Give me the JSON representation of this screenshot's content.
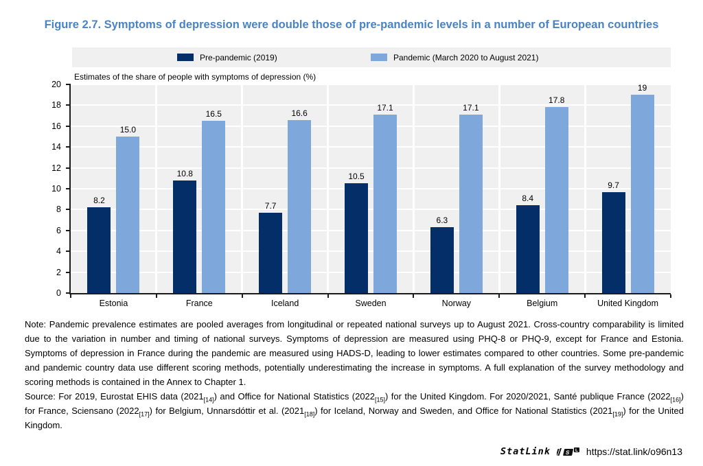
{
  "figure": {
    "title_color": "#4a83c4"
  },
  "chart_data": {
    "type": "bar",
    "title": "Figure 2.7. Symptoms of depression were double those of pre-pandemic levels in a number of European countries",
    "subtitle": "Estimates of the share of people with symptoms of depression (%)",
    "categories": [
      "Estonia",
      "France",
      "Iceland",
      "Sweden",
      "Norway",
      "Belgium",
      "United Kingdom"
    ],
    "series": [
      {
        "name": "Pre-pandemic (2019)",
        "color": "#032e68",
        "values": [
          8.2,
          10.8,
          7.7,
          10.5,
          6.3,
          8.4,
          9.7
        ],
        "labels": [
          "8.2",
          "10.8",
          "7.7",
          "10.5",
          "6.3",
          "8.4",
          "9.7"
        ]
      },
      {
        "name": "Pandemic (March 2020 to August 2021)",
        "color": "#7ea7db",
        "values": [
          15.0,
          16.5,
          16.6,
          17.1,
          17.1,
          17.8,
          19
        ],
        "labels": [
          "15.0",
          "16.5",
          "16.6",
          "17.1",
          "17.1",
          "17.8",
          "19"
        ]
      }
    ],
    "ylim": [
      0,
      20
    ],
    "ytick_step": 2,
    "grid": true,
    "legend_position": "top",
    "plot_bg": "#f0f0f0",
    "gridline_color": "#ffffff",
    "axis_color": "#1a1a1a"
  },
  "note": {
    "text": "Note: Pandemic prevalence estimates are pooled averages from longitudinal or repeated national surveys up to August 2021. Cross-country comparability is limited due to the variation in number and timing of national surveys. Symptoms of depression are measured using PHQ-8 or PHQ-9, except for France and Estonia. Symptoms of depression in France during the pandemic are measured using HADS-D, leading to lower estimates compared to other countries. Some pre-pandemic and pandemic country data use different scoring methods, potentially underestimating the increase in symptoms. A full explanation of the survey methodology and scoring methods is contained in the Annex to Chapter 1."
  },
  "source": {
    "segments": [
      {
        "t": "Source: For 2019, Eurostat EHIS data (2021"
      },
      {
        "t": "[14]",
        "sub": true
      },
      {
        "t": ") and Office for National Statistics (2022"
      },
      {
        "t": "[15]",
        "sub": true
      },
      {
        "t": ") for the United Kingdom. For 2020/2021, Santé publique France (2022"
      },
      {
        "t": "[16]",
        "sub": true
      },
      {
        "t": ") for France, Sciensano (2022"
      },
      {
        "t": "[17]",
        "sub": true
      },
      {
        "t": ") for Belgium, Unnarsdóttir et al. (2021"
      },
      {
        "t": "[18]",
        "sub": true
      },
      {
        "t": ") for Iceland, Norway and Sweden, and Office for National Statistics (2021"
      },
      {
        "t": "[19]",
        "sub": true
      },
      {
        "t": ") for the United Kingdom."
      }
    ]
  },
  "statlink": {
    "brand": "StatLink",
    "url": "https://stat.link/o96n13"
  }
}
